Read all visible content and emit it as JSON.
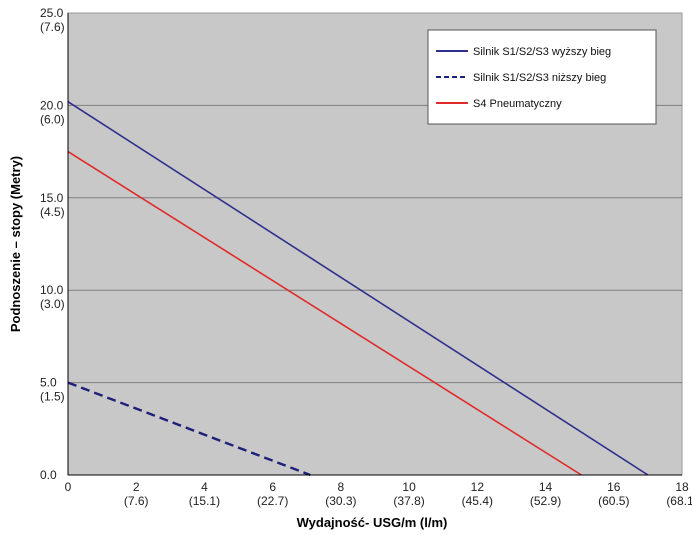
{
  "chart_data": {
    "type": "line",
    "xlabel": "Wydajność- USG/m  (l/m)",
    "ylabel": "Podnoszenie – stopy (Metry)",
    "xlim": [
      0,
      18
    ],
    "ylim": [
      0,
      25
    ],
    "grid": true,
    "legend_position": "top-right",
    "x_ticks": [
      {
        "value": 0,
        "label": "0",
        "sublabel": ""
      },
      {
        "value": 2,
        "label": "2",
        "sublabel": "(7.6)"
      },
      {
        "value": 4,
        "label": "4",
        "sublabel": "(15.1)"
      },
      {
        "value": 6,
        "label": "6",
        "sublabel": "(22.7)"
      },
      {
        "value": 8,
        "label": "8",
        "sublabel": "(30.3)"
      },
      {
        "value": 10,
        "label": "10",
        "sublabel": "(37.8)"
      },
      {
        "value": 12,
        "label": "12",
        "sublabel": "(45.4)"
      },
      {
        "value": 14,
        "label": "14",
        "sublabel": "(52.9)"
      },
      {
        "value": 16,
        "label": "16",
        "sublabel": "(60.5)"
      },
      {
        "value": 18,
        "label": "18",
        "sublabel": "(68.1)"
      }
    ],
    "y_ticks": [
      {
        "value": 0,
        "label": "0.0",
        "sublabel": ""
      },
      {
        "value": 5,
        "label": "5.0",
        "sublabel": "(1.5)"
      },
      {
        "value": 10,
        "label": "10.0",
        "sublabel": "(3.0)"
      },
      {
        "value": 15,
        "label": "15.0",
        "sublabel": "(4.5)"
      },
      {
        "value": 20,
        "label": "20.0",
        "sublabel": "(6.0)"
      },
      {
        "value": 25,
        "label": "25.0",
        "sublabel": "(7.6)"
      }
    ],
    "series": [
      {
        "name": "Silnik S1/S2/S3 wyższy bieg",
        "color": "#2e2f8c",
        "dash": "solid",
        "x": [
          0,
          17
        ],
        "y": [
          20.2,
          0
        ]
      },
      {
        "name": "Silnik S1/S2/S3 niższy bieg",
        "color": "#1d1f78",
        "dash": "dashed",
        "x": [
          0,
          7.1
        ],
        "y": [
          5.0,
          0
        ]
      },
      {
        "name": "S4 Pneumatyczny",
        "color": "#e02a2a",
        "dash": "solid",
        "x": [
          0,
          15.05
        ],
        "y": [
          17.5,
          0
        ]
      }
    ]
  },
  "colors": {
    "plot_background": "#c8c8c8",
    "grid": "#7f7f7f",
    "axis": "#000000"
  }
}
